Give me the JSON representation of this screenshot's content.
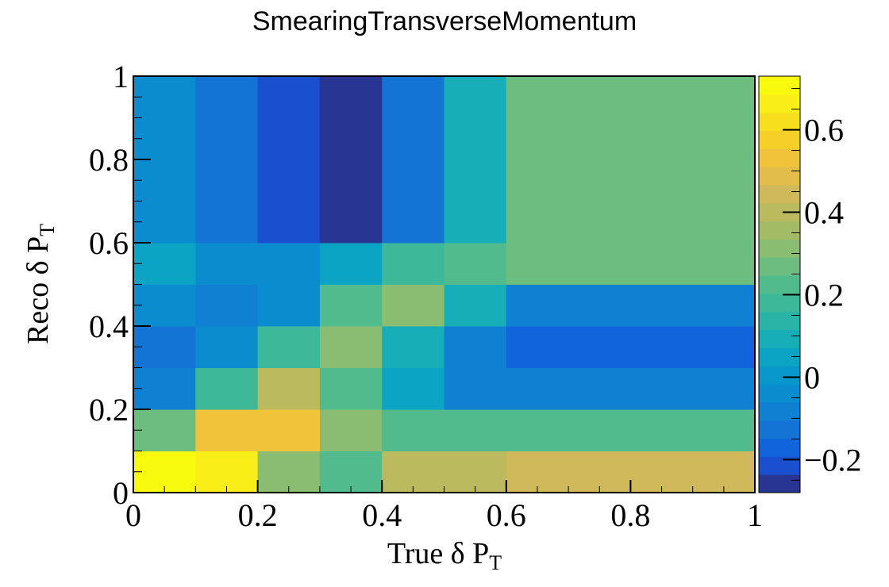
{
  "chart_data": {
    "type": "heatmap",
    "title": "SmearingTransverseMomentum",
    "xlabel": {
      "main": "True δ P",
      "sub": "T"
    },
    "ylabel": {
      "main": "Reco δ P",
      "sub": "T"
    },
    "xlim": [
      0,
      1
    ],
    "ylim": [
      0,
      1
    ],
    "x_edges": [
      0,
      0.1,
      0.2,
      0.3,
      0.4,
      0.5,
      0.6,
      1.0
    ],
    "y_edges": [
      0,
      0.1,
      0.2,
      0.3,
      0.4,
      0.5,
      0.6,
      1.0
    ],
    "x_ticks": [
      "0",
      "0.2",
      "0.4",
      "0.6",
      "0.8",
      "1"
    ],
    "y_ticks": [
      "0",
      "0.2",
      "0.4",
      "0.6",
      "0.8",
      "1"
    ],
    "z_range": [
      -0.28,
      0.73
    ],
    "z_ticks": [
      "−0.2",
      "0",
      "0.2",
      "0.4",
      "0.6"
    ],
    "z_tick_values": [
      -0.2,
      0,
      0.2,
      0.4,
      0.6
    ],
    "palette": [
      "#283593",
      "#1a4fcf",
      "#1264dc",
      "#1374d6",
      "#1080d2",
      "#0a8ccf",
      "#0898cb",
      "#0ca4c4",
      "#18aeb8",
      "#2ab4a8",
      "#3db99a",
      "#52bb8e",
      "#6dbd80",
      "#8abd72",
      "#a4bb65",
      "#bbba5e",
      "#cfb95a",
      "#e2bd4c",
      "#f0c33a",
      "#f6d029",
      "#f8df1e",
      "#f9ee17",
      "#f9fb0e"
    ],
    "values": [
      [
        0.73,
        0.67,
        0.3,
        0.23,
        0.4,
        0.4,
        0.45
      ],
      [
        0.27,
        0.53,
        0.53,
        0.32,
        0.23,
        0.23,
        0.23
      ],
      [
        -0.07,
        0.18,
        0.4,
        0.23,
        0.05,
        -0.07,
        -0.07
      ],
      [
        -0.12,
        -0.03,
        0.2,
        0.3,
        0.08,
        -0.1,
        -0.16
      ],
      [
        -0.05,
        -0.08,
        -0.05,
        0.23,
        0.32,
        0.08,
        -0.08
      ],
      [
        0.06,
        -0.04,
        -0.04,
        0.04,
        0.18,
        0.22,
        0.28
      ],
      [
        -0.02,
        -0.12,
        -0.2,
        -0.26,
        -0.14,
        0.1,
        0.28
      ]
    ]
  }
}
